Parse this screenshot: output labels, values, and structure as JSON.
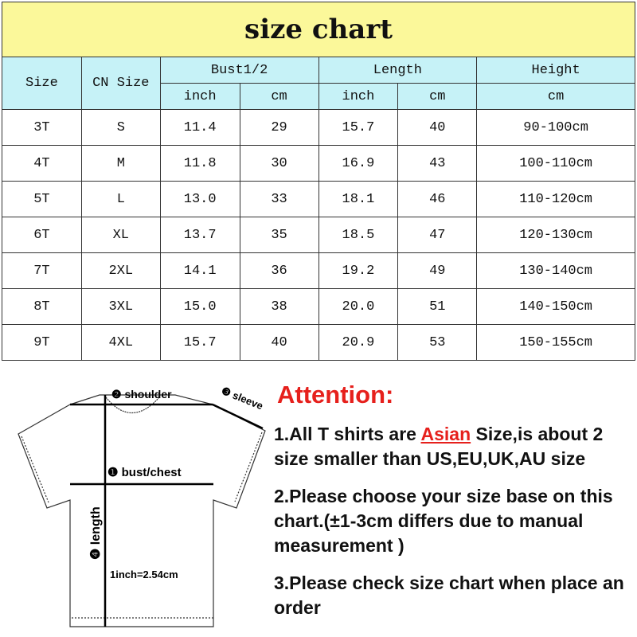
{
  "title": "size chart",
  "headers": {
    "size": "Size",
    "cn_size": "CN Size",
    "bust": "Bust1/2",
    "length": "Length",
    "height": "Height",
    "inch": "inch",
    "cm": "cm"
  },
  "rows": [
    [
      "3T",
      "S",
      "11.4",
      "29",
      "15.7",
      "40",
      "90-100cm"
    ],
    [
      "4T",
      "M",
      "11.8",
      "30",
      "16.9",
      "43",
      "100-110cm"
    ],
    [
      "5T",
      "L",
      "13.0",
      "33",
      "18.1",
      "46",
      "110-120cm"
    ],
    [
      "6T",
      "XL",
      "13.7",
      "35",
      "18.5",
      "47",
      "120-130cm"
    ],
    [
      "7T",
      "2XL",
      "14.1",
      "36",
      "19.2",
      "49",
      "130-140cm"
    ],
    [
      "8T",
      "3XL",
      "15.0",
      "38",
      "20.0",
      "51",
      "140-150cm"
    ],
    [
      "9T",
      "4XL",
      "15.7",
      "40",
      "20.9",
      "53",
      "150-155cm"
    ]
  ],
  "diagram": {
    "shoulder": "❷ shoulder",
    "sleeve": "❸ sleeve",
    "bust": "❶ bust/chest",
    "length": "❹ length",
    "conversion": "1inch=2.54cm"
  },
  "attention": {
    "heading": "Attention:",
    "p1_a": "1.All T shirts are ",
    "p1_asian": "Asian",
    "p1_b": " Size,is about 2 size smaller than US,EU,UK,AU size",
    "p2": "2.Please choose your size base on this chart.(±1-3cm differs due to manual measurement )",
    "p3": "3.Please check size chart when place an order"
  },
  "colors": {
    "title_bg": "#fbf89a",
    "header_bg": "#c6f2f7",
    "accent": "#e6201c"
  }
}
